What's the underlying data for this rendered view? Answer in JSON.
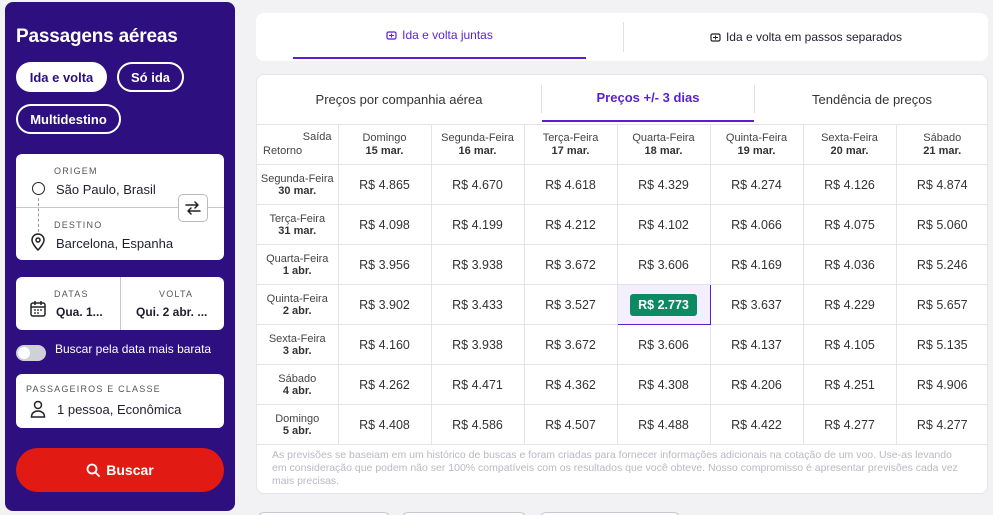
{
  "sidebar": {
    "title": "Passagens aéreas",
    "trip_types": [
      {
        "label": "Ida e volta",
        "active": true
      },
      {
        "label": "Só ida",
        "active": false
      },
      {
        "label": "Multidestino",
        "active": false
      }
    ],
    "origin": {
      "label": "ORIGEM",
      "value": "São Paulo, Brasil"
    },
    "destination": {
      "label": "DESTINO",
      "value": "Barcelona, Espanha"
    },
    "dates": {
      "label": "DATAS",
      "value": "Qua. 1..."
    },
    "return": {
      "label": "VOLTA",
      "value": "Qui. 2 abr. ..."
    },
    "cheapest_toggle": {
      "label": "Buscar pela data mais barata",
      "on": false
    },
    "passengers": {
      "label": "PASSAGEIROS E CLASSE",
      "value": "1 pessoa, Econômica"
    },
    "search_button": "Buscar"
  },
  "top_tabs": [
    {
      "label": "Ida e volta juntas",
      "active": true
    },
    {
      "label": "Ida e volta em passos separados",
      "active": false
    }
  ],
  "sub_tabs": [
    {
      "label": "Preços por companhia aérea",
      "active": false
    },
    {
      "label": "Preços +/- 3 dias",
      "active": true
    },
    {
      "label": "Tendência de preços",
      "active": false
    }
  ],
  "grid": {
    "corner_top": "Saída",
    "corner_bottom": "Retorno",
    "columns": [
      {
        "day": "Domingo",
        "date": "15 mar."
      },
      {
        "day": "Segunda-Feira",
        "date": "16 mar."
      },
      {
        "day": "Terça-Feira",
        "date": "17 mar."
      },
      {
        "day": "Quarta-Feira",
        "date": "18 mar."
      },
      {
        "day": "Quinta-Feira",
        "date": "19 mar."
      },
      {
        "day": "Sexta-Feira",
        "date": "20 mar."
      },
      {
        "day": "Sábado",
        "date": "21 mar."
      }
    ],
    "rows": [
      {
        "day": "Segunda-Feira",
        "date": "30 mar.",
        "prices": [
          "R$ 4.865",
          "R$ 4.670",
          "R$ 4.618",
          "R$ 4.329",
          "R$ 4.274",
          "R$ 4.126",
          "R$ 4.874"
        ]
      },
      {
        "day": "Terça-Feira",
        "date": "31 mar.",
        "prices": [
          "R$ 4.098",
          "R$ 4.199",
          "R$ 4.212",
          "R$ 4.102",
          "R$ 4.066",
          "R$ 4.075",
          "R$ 5.060"
        ]
      },
      {
        "day": "Quarta-Feira",
        "date": "1 abr.",
        "prices": [
          "R$ 3.956",
          "R$ 3.938",
          "R$ 3.672",
          "R$ 3.606",
          "R$ 4.169",
          "R$ 4.036",
          "R$ 5.246"
        ]
      },
      {
        "day": "Quinta-Feira",
        "date": "2 abr.",
        "prices": [
          "R$ 3.902",
          "R$ 3.433",
          "R$ 3.527",
          "R$ 2.773",
          "R$ 3.637",
          "R$ 4.229",
          "R$ 5.657"
        ]
      },
      {
        "day": "Sexta-Feira",
        "date": "3 abr.",
        "prices": [
          "R$ 4.160",
          "R$ 3.938",
          "R$ 3.672",
          "R$ 3.606",
          "R$ 4.137",
          "R$ 4.105",
          "R$ 5.135"
        ]
      },
      {
        "day": "Sábado",
        "date": "4 abr.",
        "prices": [
          "R$ 4.262",
          "R$ 4.471",
          "R$ 4.362",
          "R$ 4.308",
          "R$ 4.206",
          "R$ 4.251",
          "R$ 4.906"
        ]
      },
      {
        "day": "Domingo",
        "date": "5 abr.",
        "prices": [
          "R$ 4.408",
          "R$ 4.586",
          "R$ 4.507",
          "R$ 4.488",
          "R$ 4.422",
          "R$ 4.277",
          "R$ 4.277"
        ]
      }
    ],
    "best": {
      "row": 3,
      "col": 3
    },
    "best_color": "#0e8a63"
  },
  "disclaimer": "As previsões se baseiam em um histórico de buscas e foram criadas para fornecer informações adicionais na cotação de um voo. Use-as levando em consideração que podem não ser 100% compatíveis com os resultados que você obteve. Nosso compromisso é apresentar previsões cada vez mais precisas.",
  "colors": {
    "brand": "#2d0f7f",
    "accent": "#5a1fd0",
    "search": "#e11a13"
  },
  "icons": [
    "origin-circle-icon",
    "swap-icon",
    "pin-icon",
    "calendar-icon",
    "person-icon",
    "search-icon",
    "tab-plane-icon"
  ]
}
